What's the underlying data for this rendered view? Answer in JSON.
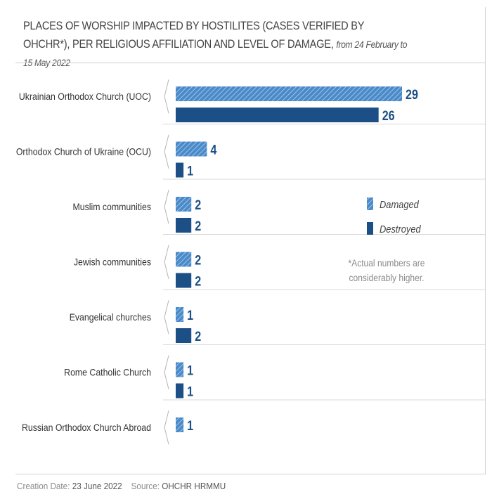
{
  "header": {
    "title": "PLACES OF WORSHIP IMPACTED BY HOSTILITES (CASES VERIFIED BY OHCHR*), PER RELIGIOUS AFFILIATION AND LEVEL OF DAMAGE,",
    "subtitle": "from 24 February to 15 May 2022"
  },
  "note": [
    "*Actual numbers are",
    "considerably higher."
  ],
  "footer": {
    "creation_label": "Creation Date:",
    "creation_value": "23 June 2022",
    "source_label": "Source:",
    "source_value": "OHCHR HRMMU"
  },
  "colors": {
    "damaged": "#4a8ac8",
    "destroyed": "#1b4f86",
    "value_text": "#1b4f86",
    "label_text": "#333333"
  },
  "chart_data": {
    "type": "bar",
    "orientation": "horizontal",
    "title": "PLACES OF WORSHIP IMPACTED BY HOSTILITES (CASES VERIFIED BY OHCHR*), PER RELIGIOUS AFFILIATION AND LEVEL OF DAMAGE, from 24 February to 15 May 2022",
    "categories": [
      "Ukrainian Orthodox Church (UOC)",
      "Orthodox Church of Ukraine (OCU)",
      "Muslim communities",
      "Jewish communities",
      "Evangelical churches",
      "Rome Catholic Church",
      "Russian Orthodox Church Abroad"
    ],
    "series": [
      {
        "name": "Damaged",
        "pattern": "hatched",
        "values": [
          29,
          4,
          2,
          2,
          1,
          1,
          1
        ]
      },
      {
        "name": "Destroyed",
        "pattern": "solid",
        "values": [
          26,
          1,
          2,
          2,
          2,
          1,
          null
        ]
      }
    ],
    "xlim": [
      0,
      29
    ],
    "legend_position": "right",
    "grid": false
  }
}
